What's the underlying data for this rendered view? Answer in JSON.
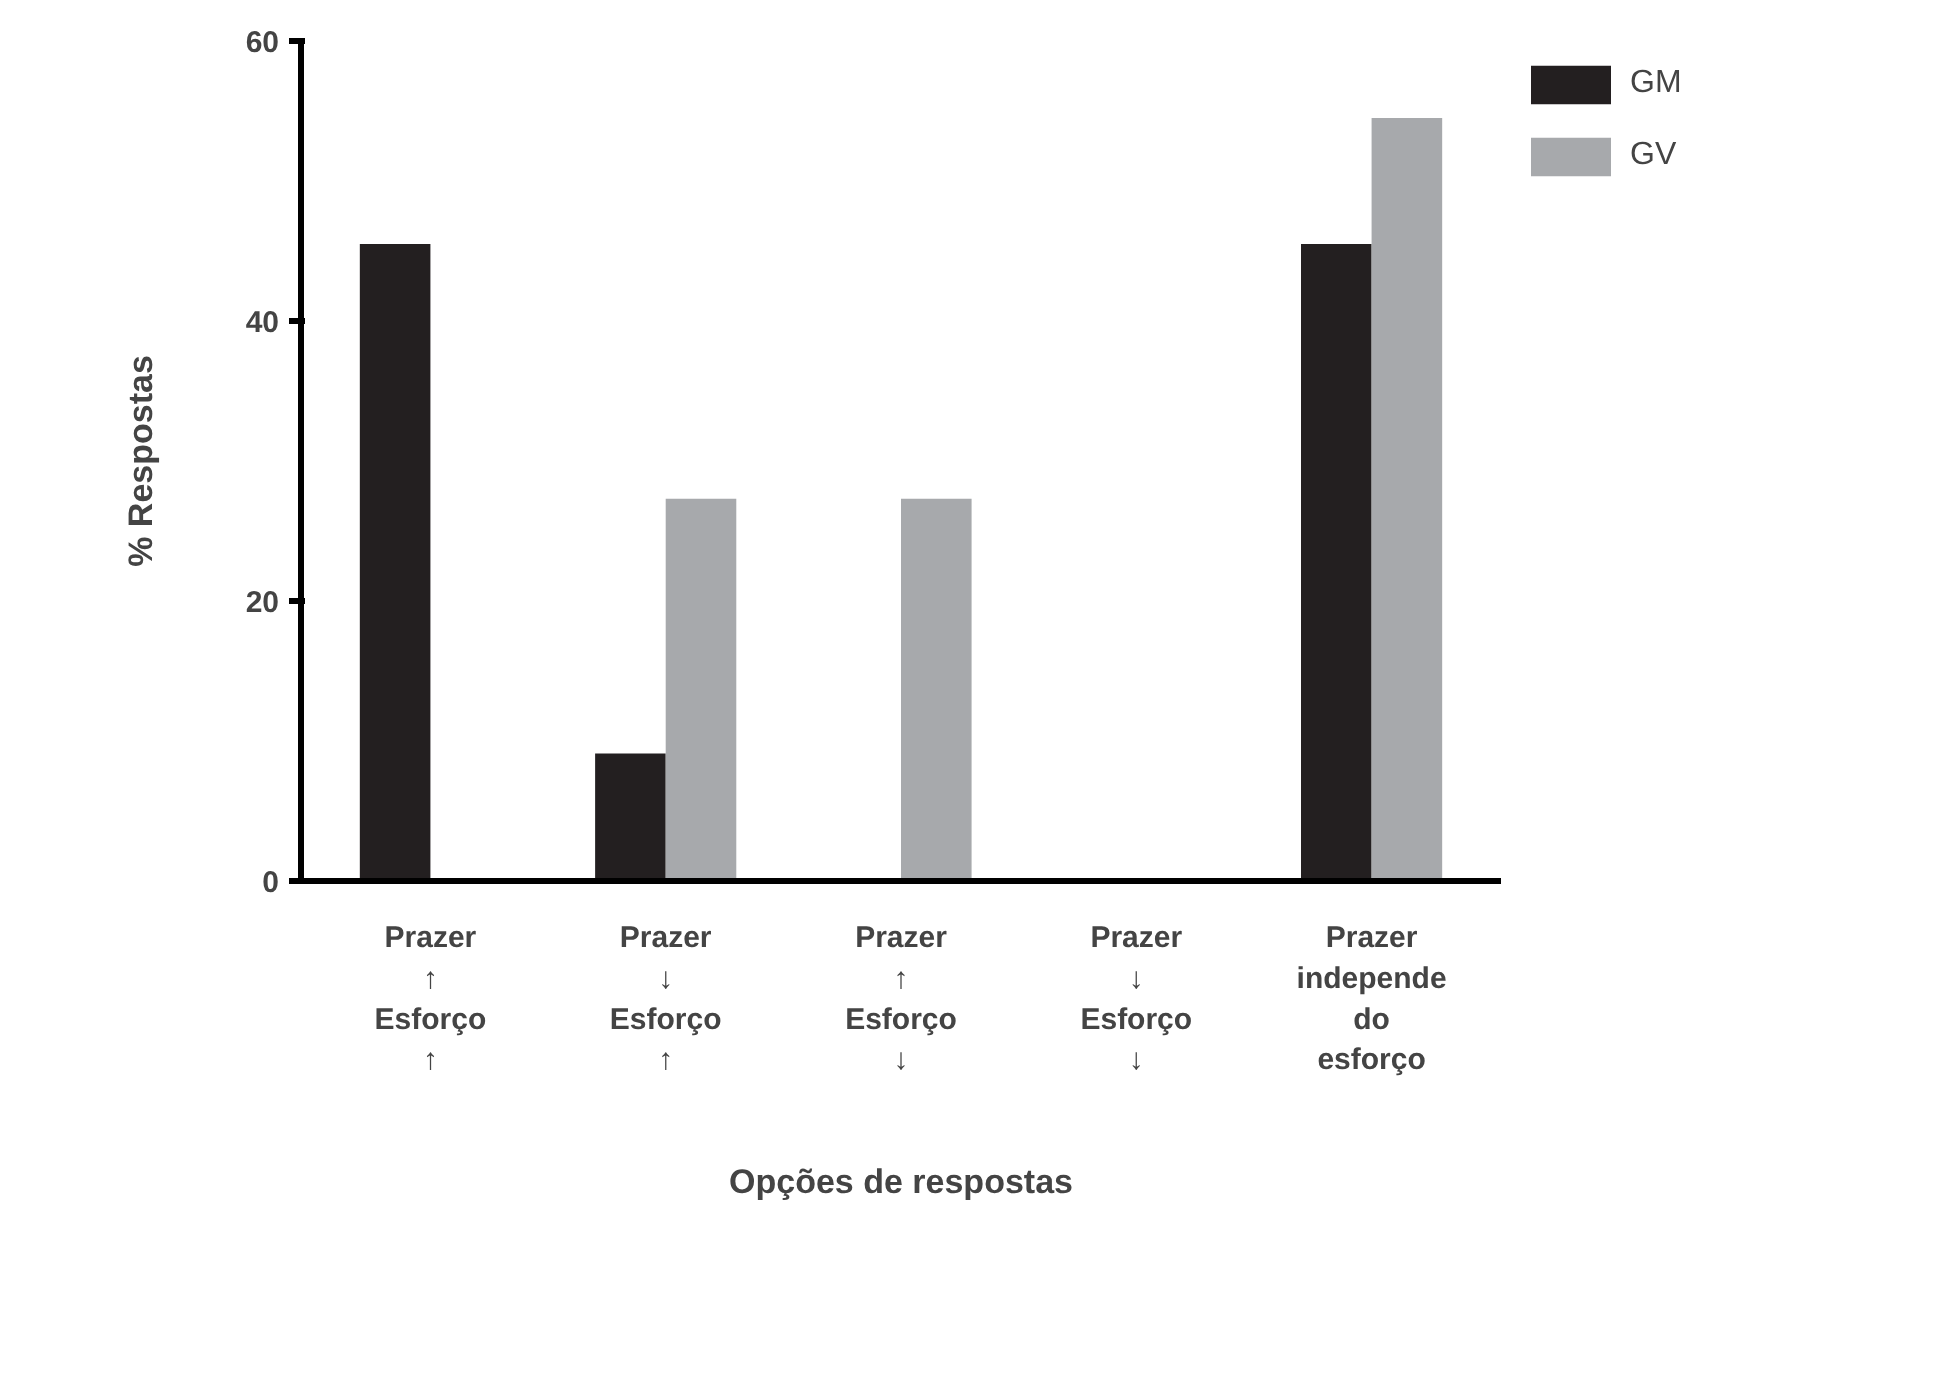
{
  "chart_data": {
    "type": "bar",
    "xlabel": "Opções de respostas",
    "ylabel": "% Respostas",
    "categories": [
      "Prazer\n↑\nEsforço\n↑",
      "Prazer\n↓\nEsforço\n↑",
      "Prazer\n↑\nEsforço\n↓",
      "Prazer\n↓\nEsforço\n↓",
      "Prazer\nindepende\ndo\nesforço"
    ],
    "series": [
      {
        "name": "GM",
        "color": "#231f20",
        "values": [
          45.5,
          9.1,
          0,
          0,
          45.5
        ]
      },
      {
        "name": "GV",
        "color": "#a7a9ac",
        "values": [
          0,
          27.3,
          27.3,
          0,
          54.5
        ]
      }
    ],
    "ylim": [
      0,
      60
    ],
    "yticks": [
      0,
      20,
      40,
      60
    ],
    "grid": false,
    "legend": "top right"
  }
}
